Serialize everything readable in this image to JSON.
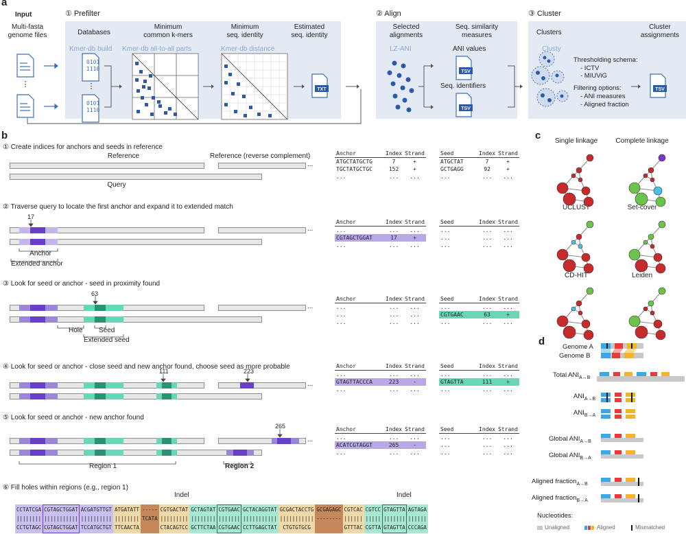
{
  "colors": {
    "panel": "#e3eaf4",
    "anchor": "#9b87d6",
    "anchor_dark": "#6a3fc7",
    "seed": "#69d6b8",
    "seed_dark": "#2e8f72",
    "hole": "#f0d9a8",
    "indel": "#c4885a",
    "node_red": "#c62a2a",
    "node_green": "#6cc34a",
    "node_blue": "#4cc0ea",
    "node_purple": "#7a35c9"
  },
  "a": {
    "label": "a",
    "input": "Input",
    "multifasta": "Multi-fasta\ngenome files",
    "step1": "① Prefilter",
    "databases": "Databases",
    "min_kmers": "Minimum\ncommon k-mers",
    "min_ident": "Minimum\nseq. identity",
    "est_ident": "Estimated\nseq. identity",
    "kmerdb_build": "Kmer-db build",
    "kmerdb_all": "Kmer-db all-to-all parts",
    "kmerdb_dist": "Kmer-db distance",
    "bits": "0101\n1110",
    "txt": "TXT",
    "step2": "② Align",
    "sel_align": "Selected\nalignments",
    "sim_meas": "Seq. similarity\nmeasures",
    "lzani": "LZ-ANI",
    "ani_values": "ANI values",
    "seq_ident": "Seq. identifiers",
    "tsv": "TSV",
    "step3": "③ Cluster",
    "clusters": "Clusters",
    "cluster_assign": "Cluster\nassignments",
    "clusty": "Clusty",
    "thresh": "Thresholding schema:",
    "ictv": "- ICTV",
    "miuvig": "- MIUViG",
    "filter": "Filtering options:",
    "ani_meas": "- ANI measures",
    "aligned_frac": "- Aligned fraction"
  },
  "b": {
    "label": "b",
    "s1": "① Create indices for anchors and seeds in reference",
    "reference": "Reference",
    "reference_rc": "Reference (reverse complement)",
    "query": "Query",
    "s2": "② Traverse query to locate the first anchor and expand it to extended match",
    "pos17": "17",
    "anchor": "Anchor",
    "ext_anchor": "Extended anchor",
    "s3": "③ Look for seed or anchor - seed in proximity found",
    "pos63": "63",
    "hole": "Hole",
    "seed": "Seed",
    "ext_seed": "Extended seed",
    "s4": "④ Look for seed or anchor - close seed and new anchor found, choose seed as more probable",
    "pos111": "111",
    "pos223": "223",
    "s5": "⑤ Look for seed or anchor - new anchor found",
    "pos265": "265",
    "region1": "Region 1",
    "region2": "Region 2",
    "s6": "⑥ Fill holes within regions (e.g., region 1)",
    "indel": "Indel",
    "indel2": "Indel",
    "dots": "...",
    "tables": [
      {
        "anchor_rows": [
          [
            "ATGCTATGCTG",
            "7",
            "+"
          ],
          [
            "TGCTATGCTGC",
            "152",
            "+"
          ],
          [
            "...",
            "...",
            "..."
          ]
        ],
        "seed_rows": [
          [
            "ATGCTAT",
            "7",
            "+"
          ],
          [
            "GCTGAGG",
            "92",
            "+"
          ],
          [
            "...",
            "...",
            "..."
          ]
        ]
      },
      {
        "anchor_rows": [
          [
            "...",
            "...",
            "..."
          ],
          [
            "CGTAGCTGGAT",
            "17",
            "+"
          ],
          [
            "...",
            "...",
            "..."
          ]
        ],
        "seed_rows": [
          [
            "...",
            "...",
            "..."
          ],
          [
            "...",
            "...",
            "..."
          ],
          [
            "...",
            "...",
            "..."
          ]
        ]
      },
      {
        "anchor_rows": [
          [
            "...",
            "...",
            "..."
          ],
          [
            "...",
            "...",
            "..."
          ],
          [
            "...",
            "...",
            "..."
          ]
        ],
        "seed_rows": [
          [
            "...",
            "...",
            "..."
          ],
          [
            "CGTGAAC",
            "63",
            "+"
          ],
          [
            "...",
            "...",
            "..."
          ]
        ]
      },
      {
        "anchor_rows": [
          [
            "...",
            "...",
            "..."
          ],
          [
            "GTAGTTACCCA",
            "223",
            "-"
          ],
          [
            "...",
            "...",
            "..."
          ]
        ],
        "seed_rows": [
          [
            "...",
            "...",
            "..."
          ],
          [
            "GTAGTTA",
            "111",
            "+"
          ],
          [
            "...",
            "...",
            "..."
          ]
        ]
      },
      {
        "anchor_rows": [
          [
            "...",
            "...",
            "..."
          ],
          [
            "ACATCGTAGGT",
            "265",
            "-"
          ],
          [
            "...",
            "...",
            "..."
          ]
        ],
        "seed_rows": [
          [
            "...",
            "...",
            "..."
          ],
          [
            "...",
            "...",
            "..."
          ],
          [
            "...",
            "...",
            "..."
          ]
        ]
      }
    ],
    "th": {
      "anchor": "Anchor",
      "index": "Index",
      "strand": "Strand",
      "seed": "Seed"
    },
    "seq_top": [
      "CCTATCGA",
      "CGTAGCTGGAT",
      "ACGATGTTGT",
      "ATGATATT",
      "-----",
      "CGTGACTAT",
      "GCTAGTAT",
      "CGTGAAC",
      "GCTACAGGTAT",
      "GCGACTACCTG",
      "GCGAGAGC",
      "CGTCAC",
      "CGTCC",
      "GTAGTTA",
      "AGTAGA"
    ],
    "seq_mid": [
      "||||||||",
      "|||||||||||",
      "||||||||||",
      "||||||||",
      "",
      "|||||||||",
      "||||||||",
      "|||||||",
      "|||||||||||",
      "|||||||||||",
      "",
      "||||||",
      "|||||",
      "|||||||",
      "||||||"
    ],
    "seq_bot": [
      "CCTGTAGC",
      "CGTAGCTGGAT",
      "TCCATGCTGT",
      "TTCAACTA",
      "TCATA",
      "CTACAGTCC",
      "GCTTCTAA",
      "CGTGAAC",
      "CCTTGAGCTAT",
      "CTGTGTGCG",
      "--------",
      "GTTTAC",
      "CGTTA",
      "GTAGTTA",
      "CCCAGA"
    ]
  },
  "c": {
    "label": "c",
    "single": "Single linkage",
    "complete": "Complete linkage",
    "uclust": "UCLUST",
    "setcover": "Set-cover",
    "cdhit": "CD-HIT",
    "leiden": "Leiden"
  },
  "d": {
    "label": "d",
    "genomeA": "Genome A",
    "genomeB": "Genome B",
    "total_ani": "Total ANI",
    "sub_total": "A↔B",
    "ani": "ANI",
    "sub_ab": "A→B",
    "sub_ba": "B→A",
    "global_ani": "Global ANI",
    "aligned_fraction": "Aligned fraction",
    "nucleotides": "Nucleotides:",
    "unaligned": "Unaligned",
    "aligned": "Aligned",
    "mismatched": "Mismatched"
  }
}
